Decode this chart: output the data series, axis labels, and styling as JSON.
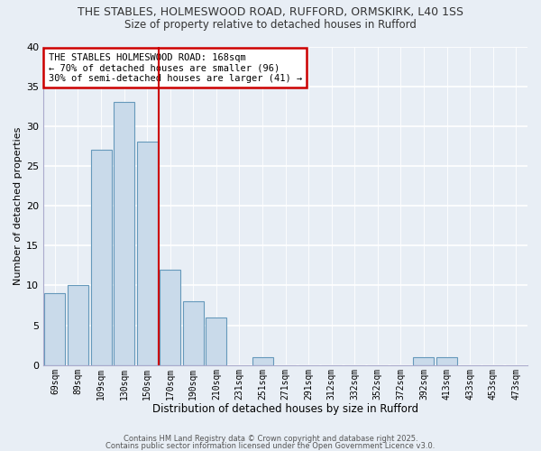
{
  "title1": "THE STABLES, HOLMESWOOD ROAD, RUFFORD, ORMSKIRK, L40 1SS",
  "title2": "Size of property relative to detached houses in Rufford",
  "xlabel": "Distribution of detached houses by size in Rufford",
  "ylabel": "Number of detached properties",
  "categories": [
    "69sqm",
    "89sqm",
    "109sqm",
    "130sqm",
    "150sqm",
    "170sqm",
    "190sqm",
    "210sqm",
    "231sqm",
    "251sqm",
    "271sqm",
    "291sqm",
    "312sqm",
    "332sqm",
    "352sqm",
    "372sqm",
    "392sqm",
    "413sqm",
    "433sqm",
    "453sqm",
    "473sqm"
  ],
  "values": [
    9,
    10,
    27,
    33,
    28,
    12,
    8,
    6,
    0,
    1,
    0,
    0,
    0,
    0,
    0,
    0,
    1,
    1,
    0,
    0,
    0
  ],
  "bar_color": "#c9daea",
  "bar_edge_color": "#6699bb",
  "vline_color": "#cc0000",
  "annotation_title": "THE STABLES HOLMESWOOD ROAD: 168sqm",
  "annotation_line1": "← 70% of detached houses are smaller (96)",
  "annotation_line2": "30% of semi-detached houses are larger (41) →",
  "annotation_box_color": "#ffffff",
  "annotation_box_edge": "#cc0000",
  "ylim": [
    0,
    40
  ],
  "yticks": [
    0,
    5,
    10,
    15,
    20,
    25,
    30,
    35,
    40
  ],
  "footer1": "Contains HM Land Registry data © Crown copyright and database right 2025.",
  "footer2": "Contains public sector information licensed under the Open Government Licence v3.0.",
  "bg_color": "#e8eef5"
}
